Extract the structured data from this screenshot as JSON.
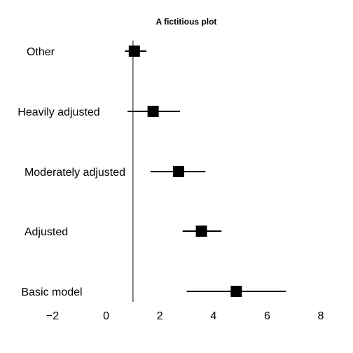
{
  "chart_data": {
    "type": "forest",
    "title": "A fictitious plot",
    "xlabel": "",
    "ylabel": "",
    "xlim": [
      -2,
      8
    ],
    "xticks": [
      -2,
      0,
      2,
      4,
      6,
      8
    ],
    "xtick_labels": [
      "−2",
      "0",
      "2",
      "4",
      "6",
      "8"
    ],
    "reference_line": 1,
    "grid": false,
    "legend": "none",
    "marker_color": "#000000",
    "categories": [
      "Other",
      "Heavily adjusted",
      "Moderately adjusted",
      "Adjusted",
      "Basic model"
    ],
    "estimates": [
      1.05,
      1.75,
      2.7,
      3.55,
      4.85
    ],
    "lower": [
      0.7,
      0.8,
      1.65,
      2.85,
      3.0
    ],
    "upper": [
      1.5,
      2.75,
      3.7,
      4.3,
      6.7
    ]
  }
}
